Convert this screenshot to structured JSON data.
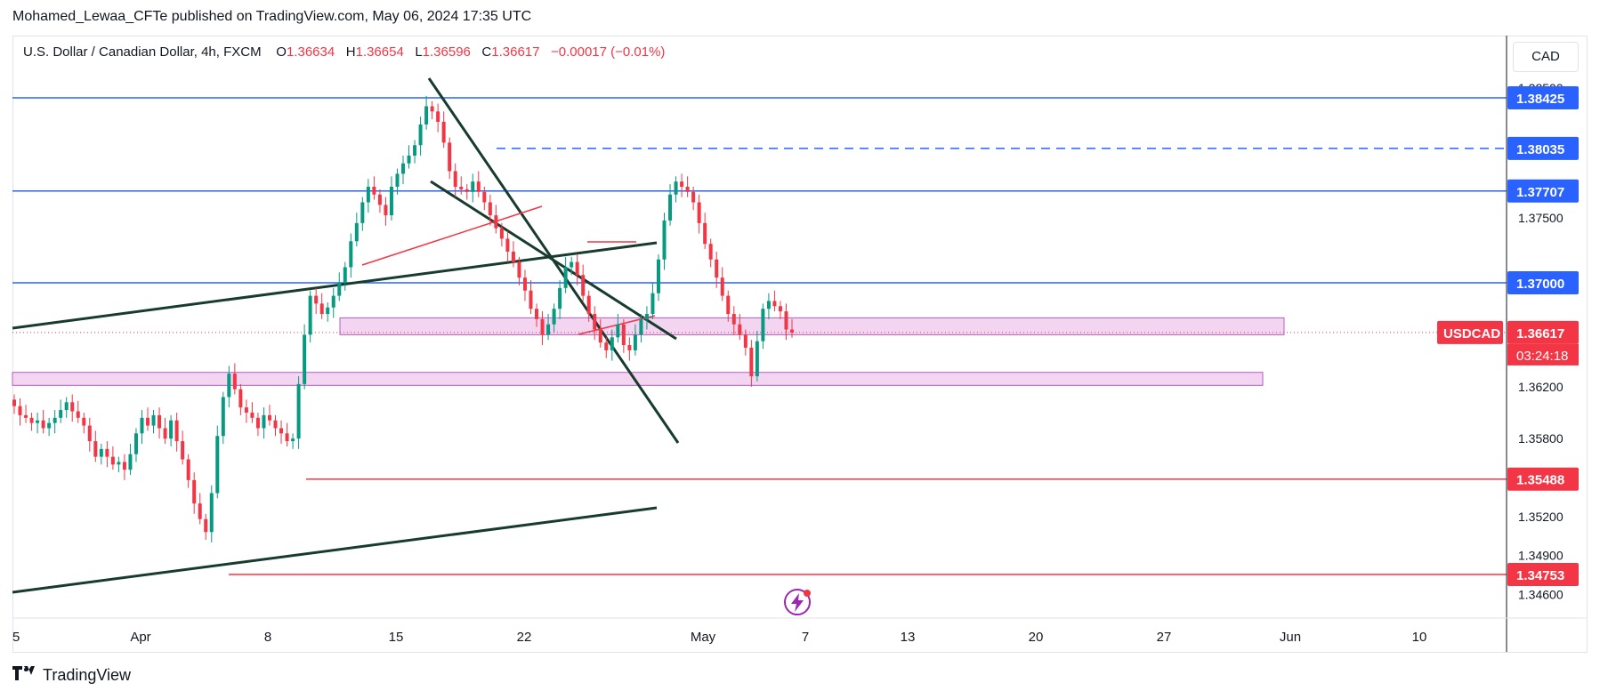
{
  "header": {
    "published": "Mohamed_Lewaa_CFTe published on TradingView.com, May 06, 2024 17:35 UTC"
  },
  "legend": {
    "symbol": "U.S. Dollar / Canadian Dollar, 4h, FXCM",
    "open_label": "O",
    "open": "1.36634",
    "high_label": "H",
    "high": "1.36654",
    "low_label": "L",
    "low": "1.36596",
    "close_label": "C",
    "close": "1.36617",
    "change": "−0.00017 (−0.01%)"
  },
  "currency_button": "CAD",
  "footer": {
    "brand": "TradingView"
  },
  "colors": {
    "blue": "#2962ff",
    "red": "#f23645",
    "green": "#089981",
    "zone_fill": "#f3d4f1",
    "zone_border": "#b05fc2",
    "trendline": "#173b2c"
  },
  "icons": [
    "tradingview-logo-icon",
    "lightning-icon"
  ],
  "chart_data": {
    "type": "candlestick",
    "symbol_badge": "USDCAD",
    "countdown": "03:24:18",
    "ylim": [
      1.3445,
      1.3875
    ],
    "y_ticks": [
      "1.38500",
      "1.37500",
      "1.36200",
      "1.35800",
      "1.35200",
      "1.34900",
      "1.34600"
    ],
    "x_ticks": [
      "5",
      "Apr",
      "8",
      "15",
      "22",
      "May",
      "7",
      "13",
      "20",
      "27",
      "Jun",
      "10"
    ],
    "price_labels": [
      {
        "value": "1.38425",
        "color": "#2962ff"
      },
      {
        "value": "1.38035",
        "color": "#2962ff"
      },
      {
        "value": "1.37707",
        "color": "#2962ff"
      },
      {
        "value": "1.37000",
        "color": "#2962ff"
      },
      {
        "value": "1.36617",
        "color": "#f23645"
      },
      {
        "value": "1.35488",
        "color": "#f23645"
      },
      {
        "value": "1.34753",
        "color": "#f23645"
      }
    ],
    "horizontal_levels": [
      {
        "price": 1.38425,
        "style": "solid",
        "color": "#2962ff",
        "from": "full"
      },
      {
        "price": 1.38035,
        "style": "dashed",
        "color": "#2962ff",
        "from": "Apr 19"
      },
      {
        "price": 1.37707,
        "style": "solid",
        "color": "#2962ff",
        "from": "full"
      },
      {
        "price": 1.37,
        "style": "solid",
        "color": "#2962ff",
        "from": "full"
      },
      {
        "price": 1.35488,
        "style": "solid",
        "color": "#f23645",
        "from": "Apr 9"
      },
      {
        "price": 1.34753,
        "style": "solid",
        "color": "#f23645",
        "from": "Apr 5"
      }
    ],
    "zones": [
      {
        "top": 1.3673,
        "bottom": 1.366,
        "from": "Apr 11",
        "to": "May 30"
      },
      {
        "top": 1.3631,
        "bottom": 1.3621,
        "from": "Mar 29",
        "to": "May 29"
      }
    ],
    "candles_close": [
      1.3605,
      1.3598,
      1.3596,
      1.3592,
      1.3594,
      1.3588,
      1.3592,
      1.3596,
      1.3602,
      1.3608,
      1.3601,
      1.3596,
      1.359,
      1.3578,
      1.3566,
      1.3572,
      1.3566,
      1.356,
      1.3562,
      1.3556,
      1.3568,
      1.3584,
      1.3596,
      1.359,
      1.3598,
      1.3588,
      1.358,
      1.3594,
      1.3578,
      1.3564,
      1.3548,
      1.353,
      1.3518,
      1.3508,
      1.3538,
      1.3582,
      1.3612,
      1.363,
      1.3618,
      1.3604,
      1.36,
      1.3596,
      1.3588,
      1.3598,
      1.3594,
      1.3588,
      1.3584,
      1.3578,
      1.358,
      1.3622,
      1.366,
      1.369,
      1.3684,
      1.3676,
      1.3681,
      1.369,
      1.37,
      1.3712,
      1.3732,
      1.3746,
      1.3762,
      1.3774,
      1.3768,
      1.376,
      1.3752,
      1.3774,
      1.3784,
      1.3792,
      1.3798,
      1.3806,
      1.3822,
      1.3836,
      1.3832,
      1.3824,
      1.3808,
      1.3786,
      1.3774,
      1.3772,
      1.377,
      1.3778,
      1.377,
      1.3762,
      1.3752,
      1.3742,
      1.3734,
      1.3724,
      1.3716,
      1.3704,
      1.3694,
      1.368,
      1.3672,
      1.366,
      1.3668,
      1.368,
      1.3696,
      1.3712,
      1.3716,
      1.3706,
      1.369,
      1.3676,
      1.3664,
      1.3654,
      1.3648,
      1.3658,
      1.3668,
      1.3652,
      1.3648,
      1.366,
      1.3672,
      1.3676,
      1.3692,
      1.3718,
      1.3748,
      1.3768,
      1.3778,
      1.3774,
      1.377,
      1.3762,
      1.3746,
      1.373,
      1.3718,
      1.3704,
      1.369,
      1.3676,
      1.3668,
      1.366,
      1.365,
      1.3628,
      1.3655,
      1.368,
      1.3686,
      1.3682,
      1.3678,
      1.3664,
      1.36617
    ]
  }
}
